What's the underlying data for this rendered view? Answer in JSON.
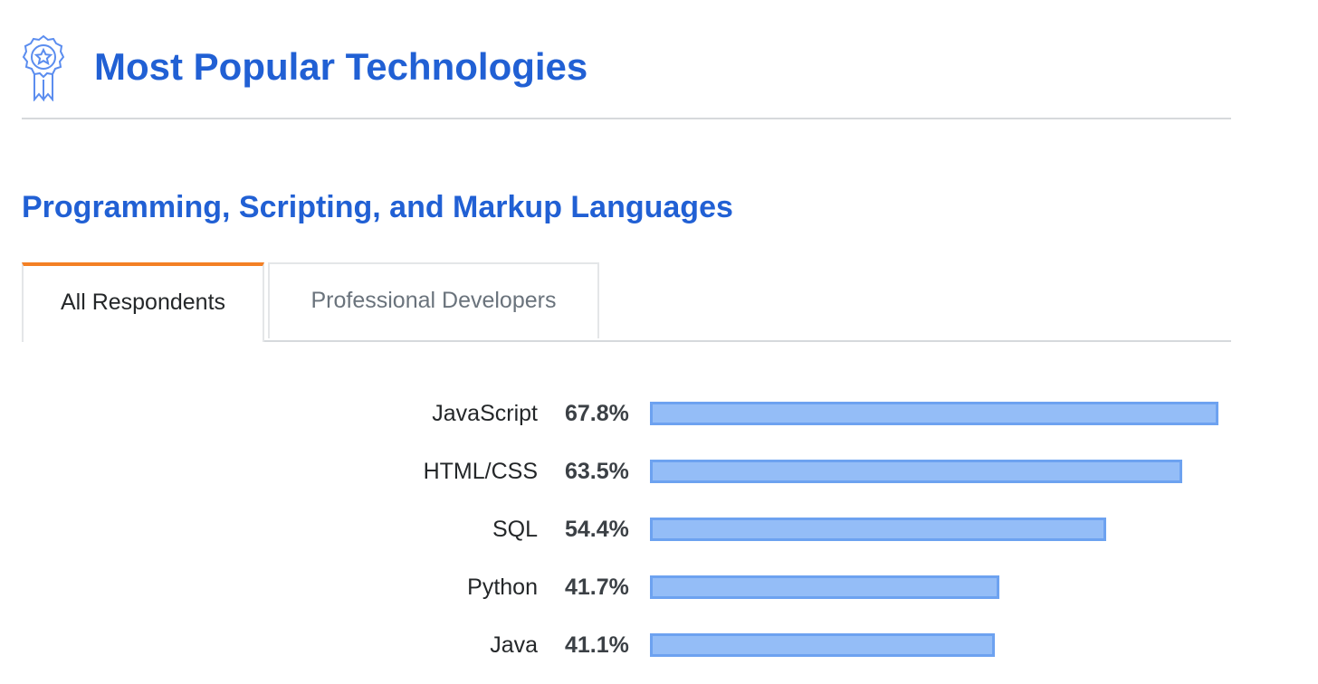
{
  "header": {
    "title": "Most Popular Technologies",
    "icon": "award-ribbon-icon"
  },
  "section": {
    "title": "Programming, Scripting, and Markup Languages"
  },
  "tabs": [
    {
      "label": "All Respondents",
      "active": true
    },
    {
      "label": "Professional Developers",
      "active": false
    }
  ],
  "colors": {
    "accent_blue": "#2160d4",
    "tab_active_border": "#f48024",
    "bar_fill": "#94bdf7",
    "bar_border": "#6da2f0"
  },
  "chart_data": {
    "type": "bar",
    "orientation": "horizontal",
    "categories": [
      "JavaScript",
      "HTML/CSS",
      "SQL",
      "Python",
      "Java"
    ],
    "values": [
      67.8,
      63.5,
      54.4,
      41.7,
      41.1
    ],
    "value_labels": [
      "67.8%",
      "63.5%",
      "54.4%",
      "41.7%",
      "41.1%"
    ],
    "unit": "%",
    "xlim": [
      0,
      67.8
    ],
    "title": "",
    "xlabel": "",
    "ylabel": "",
    "grid": false
  }
}
